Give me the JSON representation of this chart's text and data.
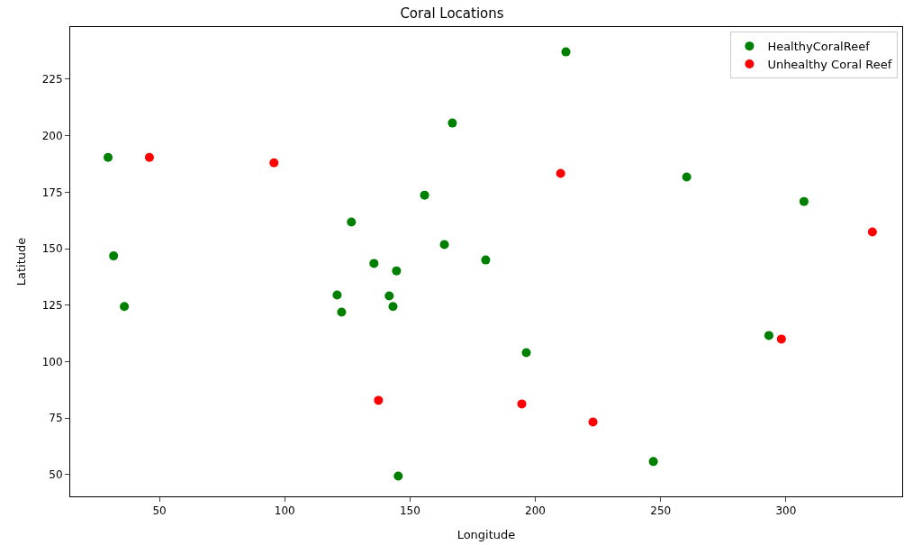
{
  "chart_data": {
    "type": "scatter",
    "title": "Coral Locations",
    "xlabel": "Longitude",
    "ylabel": "Latitude",
    "xlim": [
      14.4,
      346.4
    ],
    "ylim": [
      40.4,
      248.1
    ],
    "xticks": [
      50,
      100,
      150,
      200,
      250,
      300
    ],
    "yticks": [
      50,
      75,
      100,
      125,
      150,
      175,
      200,
      225
    ],
    "legend": "top right",
    "marker": "circle",
    "series": [
      {
        "name": "HealthyCoralReef",
        "color": "#008000",
        "x": [
          29.5,
          31.7,
          36,
          212.2,
          166.9,
          155.8,
          126.6,
          163.7,
          135.6,
          144.6,
          180.2,
          120.9,
          122.7,
          141.7,
          143.2,
          196.4,
          260.4,
          307.2,
          293.2,
          247.1,
          145.3
        ],
        "values": [
          190.4,
          146.8,
          124.4,
          237.1,
          205.6,
          173.7,
          161.8,
          151.8,
          143.5,
          140.2,
          145.0,
          129.5,
          121.9,
          129.1,
          124.4,
          104,
          181.7,
          170.9,
          111.6,
          55.8,
          49.4
        ]
      },
      {
        "name": "Unhealthy Coral Reef",
        "color": "#ff0000",
        "x": [
          46,
          95.7,
          210.1,
          334.5,
          298.2,
          137.4,
          194.6,
          223
        ],
        "values": [
          190.4,
          188,
          183.3,
          157.4,
          110,
          82.9,
          81.3,
          73.3
        ]
      }
    ]
  }
}
